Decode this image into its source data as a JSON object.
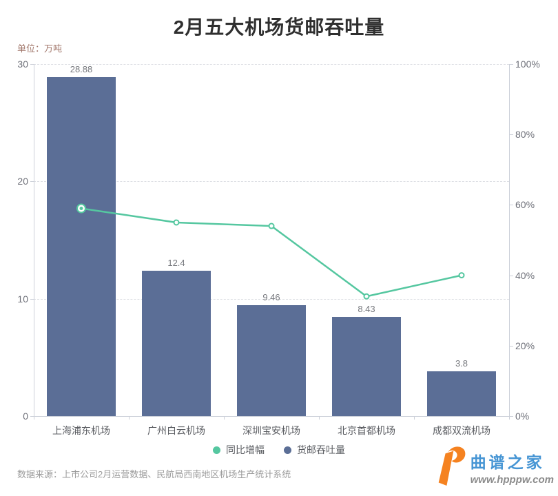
{
  "title": "2月五大机场货邮吞吐量",
  "unit_label": "单位：万吨",
  "source_note": "数据来源：上市公司2月运营数据、民航局西南地区机场生产统计系统",
  "watermark": {
    "site_name": "曲谱之家",
    "site_url": "www.hpppw.com",
    "logo_color": "#f58220",
    "name_color": "#4695d4",
    "url_color": "#8c8c8c"
  },
  "legend": [
    {
      "label": "同比增幅",
      "color": "#55c7a0"
    },
    {
      "label": "货邮吞吐量",
      "color": "#5b6e96"
    }
  ],
  "chart_data": {
    "type": "bar+line",
    "categories": [
      "上海浦东机场",
      "广州白云机场",
      "深圳宝安机场",
      "北京首都机场",
      "成都双流机场"
    ],
    "series": [
      {
        "name": "货邮吞吐量",
        "type": "bar",
        "axis": "left",
        "unit": "万吨",
        "values": [
          28.88,
          12.4,
          9.46,
          8.43,
          3.8
        ],
        "color": "#5b6e96"
      },
      {
        "name": "同比增幅",
        "type": "line",
        "axis": "right",
        "unit": "%",
        "values": [
          59,
          55,
          54,
          34,
          40
        ],
        "color": "#55c7a0"
      }
    ],
    "bar_labels": [
      "28.88",
      "12.4",
      "9.46",
      "8.43",
      "3.8"
    ],
    "y_left": {
      "min": 0,
      "max": 30,
      "ticks": [
        0,
        10,
        20,
        30
      ]
    },
    "y_right": {
      "min": 0,
      "max": 100,
      "ticks": [
        0,
        20,
        40,
        60,
        80,
        100
      ],
      "suffix": "%"
    },
    "grid": "horizontal dashed lines at left-axis ticks",
    "legend_position": "bottom-center"
  }
}
